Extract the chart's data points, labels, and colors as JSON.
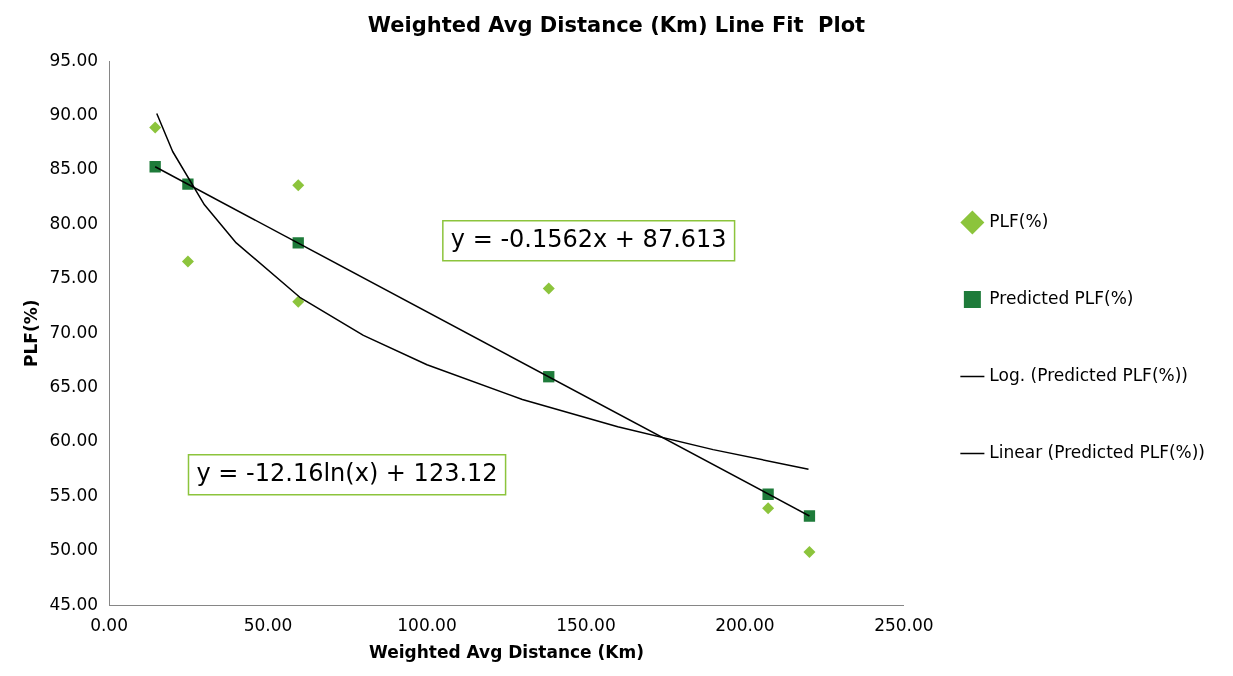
{
  "chart_data": {
    "type": "scatter",
    "title": "Weighted Avg Distance (Km) Line Fit  Plot",
    "xlabel": "Weighted Avg Distance (Km)",
    "ylabel": "PLF(%)",
    "xlim": [
      0,
      250
    ],
    "xticks": [
      {
        "value": 0,
        "label": "0.00"
      },
      {
        "value": 50,
        "label": "50.00"
      },
      {
        "value": 100,
        "label": "100.00"
      },
      {
        "value": 150,
        "label": "150.00"
      },
      {
        "value": 200,
        "label": "200.00"
      },
      {
        "value": 250,
        "label": "250.00"
      }
    ],
    "ylim": [
      45,
      95
    ],
    "yticks": [
      {
        "value": 45,
        "label": "45.00"
      },
      {
        "value": 50,
        "label": "50.00"
      },
      {
        "value": 55,
        "label": "55.00"
      },
      {
        "value": 60,
        "label": "60.00"
      },
      {
        "value": 65,
        "label": "65.00"
      },
      {
        "value": 70,
        "label": "70.00"
      },
      {
        "value": 75,
        "label": "75.00"
      },
      {
        "value": 80,
        "label": "80.00"
      },
      {
        "value": 85,
        "label": "85.00"
      },
      {
        "value": 90,
        "label": "90.00"
      },
      {
        "value": 95,
        "label": "95.00"
      }
    ],
    "grid": false,
    "legend": "right",
    "series": [
      {
        "name": "PLF(%)",
        "type": "scatter",
        "marker": "diamond",
        "color": "#8cc43c",
        "x": [
          14.5,
          24.8,
          59.5,
          59.5,
          138.3,
          207.3,
          220.3
        ],
        "values": [
          88.9,
          76.6,
          83.6,
          72.9,
          74.1,
          53.9,
          49.9
        ]
      },
      {
        "name": "Predicted PLF(%)",
        "type": "scatter",
        "marker": "square",
        "color": "#1e7b3a",
        "x": [
          14.5,
          24.8,
          59.5,
          138.3,
          207.3,
          220.3
        ],
        "values": [
          85.3,
          83.7,
          78.3,
          66.0,
          55.2,
          53.2
        ]
      },
      {
        "name": "Log. (Predicted PLF(%))",
        "type": "line",
        "marker": "none",
        "color": "#000000",
        "x": [
          15,
          20,
          30,
          40,
          60,
          80,
          100,
          130,
          160,
          190,
          220
        ],
        "values": [
          90.2,
          86.7,
          81.8,
          78.3,
          73.3,
          69.8,
          67.1,
          63.9,
          61.4,
          59.3,
          57.5
        ]
      },
      {
        "name": "Linear (Predicted PLF(%))",
        "type": "line",
        "marker": "none",
        "color": "#000000",
        "x": [
          14.5,
          220.3
        ],
        "values": [
          85.3,
          53.2
        ]
      }
    ],
    "annotations": [
      "y = -0.1562x + 87.613",
      "y = -12.16ln(x) + 123.12"
    ]
  }
}
